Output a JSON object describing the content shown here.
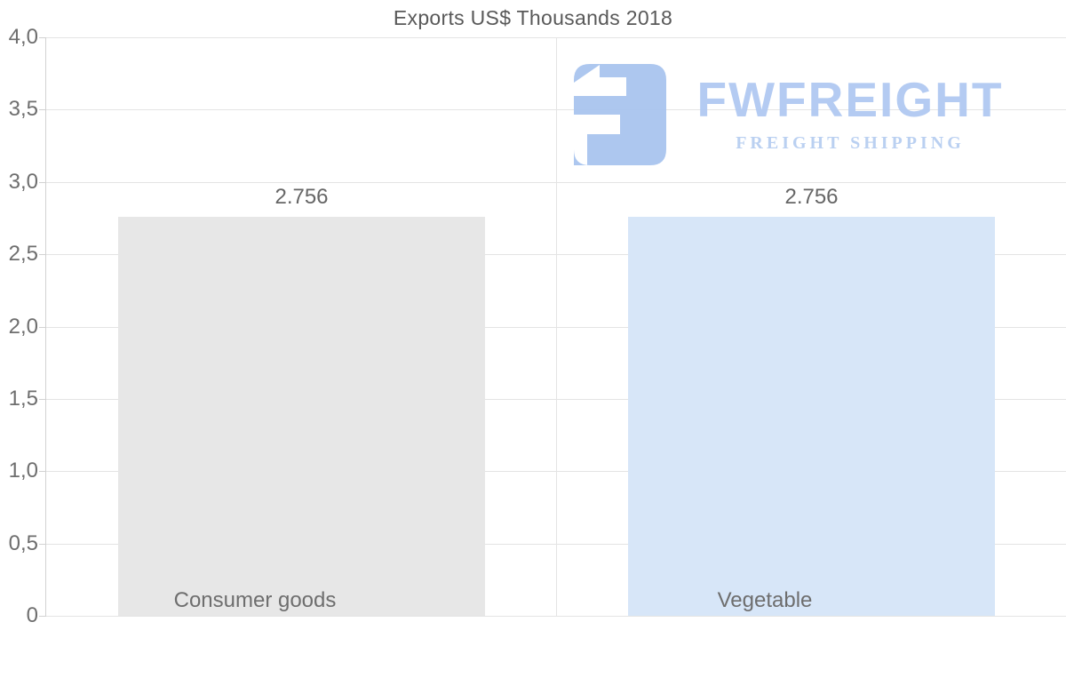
{
  "title": "Exports US$ Thousands 2018",
  "watermark": {
    "brand": "FWFREIGHT",
    "tagline": "FREIGHT SHIPPING",
    "icon": "fwfreight-logo-icon",
    "brand_color": "#b0c9f2",
    "icon_color": "#a9c5ef"
  },
  "chart_data": {
    "type": "bar",
    "title": "Exports US$ Thousands 2018",
    "categories": [
      "Consumer goods",
      "Vegetable"
    ],
    "values": [
      2.756,
      2.756
    ],
    "value_labels": [
      "2.756",
      "2.756"
    ],
    "bar_colors": [
      "#e7e7e7",
      "#d7e6f8"
    ],
    "ylim": [
      0,
      4
    ],
    "ytick_values": [
      4.0,
      3.5,
      3.0,
      2.5,
      2.0,
      1.5,
      1.0,
      0.5,
      0
    ],
    "ytick_labels": [
      "4,0",
      "3,5",
      "3,0",
      "2,5",
      "2,0",
      "1,5",
      "1,0",
      "0,5",
      "0"
    ],
    "xlabel": "",
    "ylabel": "",
    "grid": true,
    "legend": false,
    "decimal_separator_axis": ",",
    "colors": {
      "title_text": "#595959",
      "axis_text": "#6e6e6e",
      "value_text": "#666666",
      "gridline": "#e4e4e4",
      "axis_line": "#d2d2d2"
    }
  }
}
